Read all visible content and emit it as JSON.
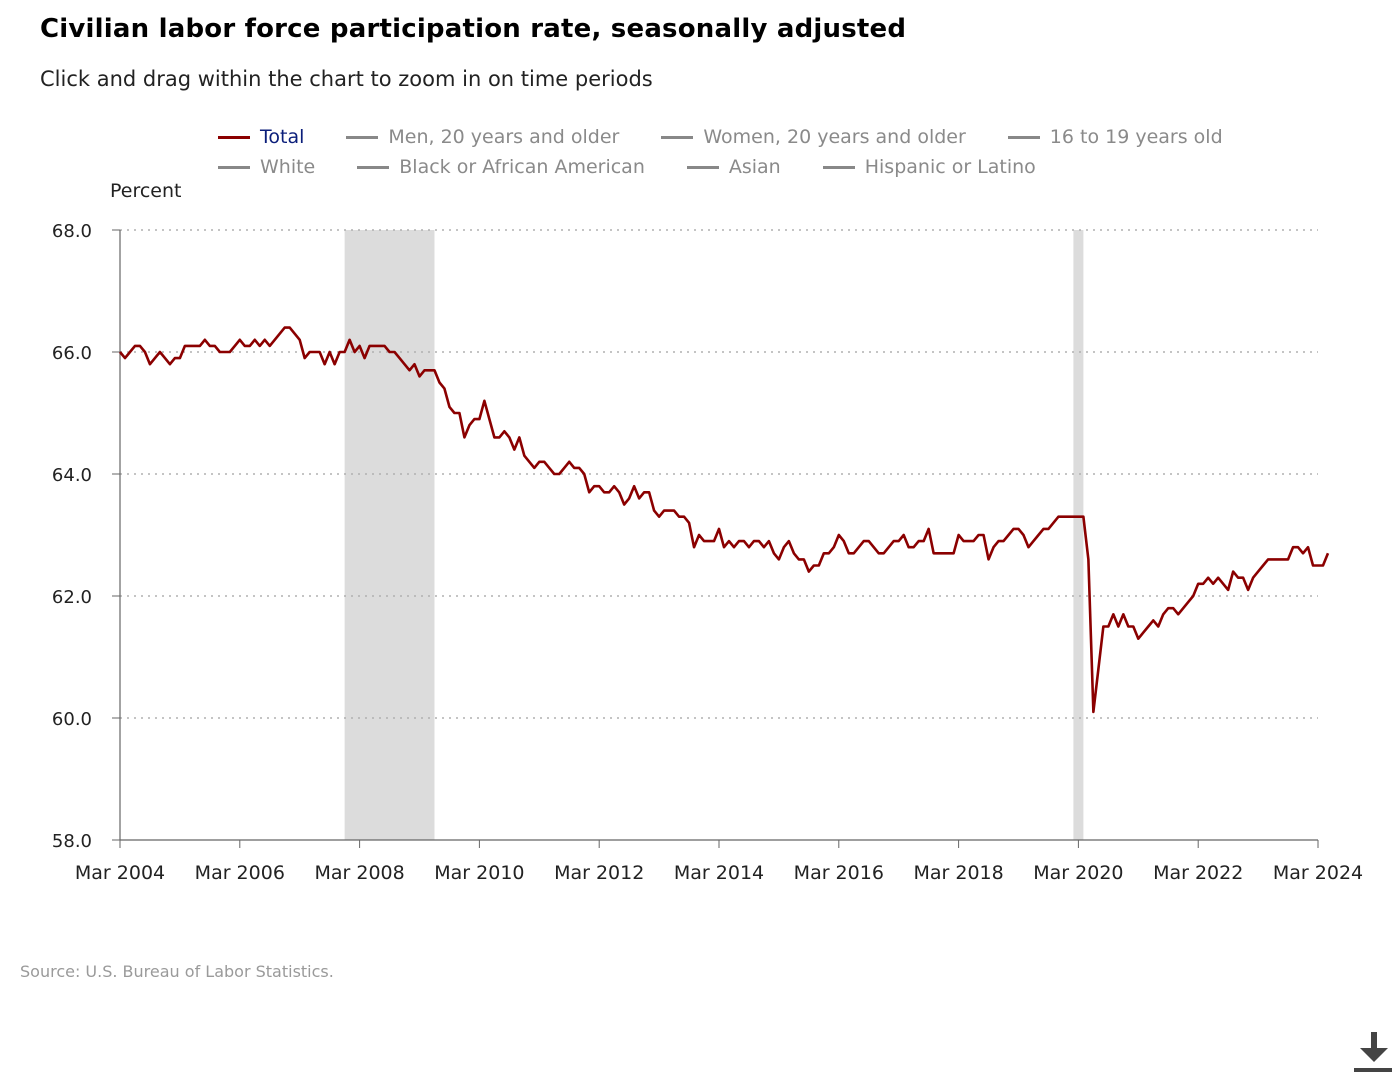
{
  "header": {
    "title": "Civilian labor force participation rate, seasonally adjusted",
    "subtitle": "Click and drag within the chart to zoom in on time periods"
  },
  "legend": {
    "row1": [
      {
        "label": "Total",
        "color": "#8b0000",
        "active": true
      },
      {
        "label": "Men, 20 years and older",
        "color": "#888888",
        "active": false
      },
      {
        "label": "Women, 20 years and older",
        "color": "#888888",
        "active": false
      },
      {
        "label": "16 to 19 years old",
        "color": "#888888",
        "active": false
      }
    ],
    "row2": [
      {
        "label": "White",
        "color": "#888888",
        "active": false
      },
      {
        "label": "Black or African American",
        "color": "#888888",
        "active": false
      },
      {
        "label": "Asian",
        "color": "#888888",
        "active": false
      },
      {
        "label": "Hispanic or Latino",
        "color": "#888888",
        "active": false
      }
    ]
  },
  "footer": {
    "source": "Source: U.S. Bureau of Labor Statistics.",
    "download_icon": "download-icon"
  },
  "chart_data": {
    "type": "line",
    "ylabel": "Percent",
    "ylim": [
      58,
      68
    ],
    "yticks": [
      "68.0",
      "66.0",
      "64.0",
      "62.0",
      "60.0",
      "58.0"
    ],
    "xticks": [
      "Mar 2004",
      "Mar 2006",
      "Mar 2008",
      "Mar 2010",
      "Mar 2012",
      "Mar 2014",
      "Mar 2016",
      "Mar 2018",
      "Mar 2020",
      "Mar 2022",
      "Mar 2024"
    ],
    "x_start": "Mar 2004",
    "x_end": "Mar 2024",
    "grid": "horizontal dotted",
    "recessions": [
      {
        "start": "Dec 2007",
        "end": "Jun 2009"
      },
      {
        "start": "Feb 2020",
        "end": "Apr 2020"
      }
    ],
    "series": [
      {
        "name": "Total",
        "color": "#8b0000",
        "values": [
          66.0,
          65.9,
          66.0,
          66.1,
          66.1,
          66.0,
          65.8,
          65.9,
          66.0,
          65.9,
          65.8,
          65.9,
          65.9,
          66.1,
          66.1,
          66.1,
          66.1,
          66.2,
          66.1,
          66.1,
          66.0,
          66.0,
          66.0,
          66.1,
          66.2,
          66.1,
          66.1,
          66.2,
          66.1,
          66.2,
          66.1,
          66.2,
          66.3,
          66.4,
          66.4,
          66.3,
          66.2,
          65.9,
          66.0,
          66.0,
          66.0,
          65.8,
          66.0,
          65.8,
          66.0,
          66.0,
          66.2,
          66.0,
          66.1,
          65.9,
          66.1,
          66.1,
          66.1,
          66.1,
          66.0,
          66.0,
          65.9,
          65.8,
          65.7,
          65.8,
          65.6,
          65.7,
          65.7,
          65.7,
          65.5,
          65.4,
          65.1,
          65.0,
          65.0,
          64.6,
          64.8,
          64.9,
          64.9,
          65.2,
          64.9,
          64.6,
          64.6,
          64.7,
          64.6,
          64.4,
          64.6,
          64.3,
          64.2,
          64.1,
          64.2,
          64.2,
          64.1,
          64.0,
          64.0,
          64.1,
          64.2,
          64.1,
          64.1,
          64.0,
          63.7,
          63.8,
          63.8,
          63.7,
          63.7,
          63.8,
          63.7,
          63.5,
          63.6,
          63.8,
          63.6,
          63.7,
          63.7,
          63.4,
          63.3,
          63.4,
          63.4,
          63.4,
          63.3,
          63.3,
          63.2,
          62.8,
          63.0,
          62.9,
          62.9,
          62.9,
          63.1,
          62.8,
          62.9,
          62.8,
          62.9,
          62.9,
          62.8,
          62.9,
          62.9,
          62.8,
          62.9,
          62.7,
          62.6,
          62.8,
          62.9,
          62.7,
          62.6,
          62.6,
          62.4,
          62.5,
          62.5,
          62.7,
          62.7,
          62.8,
          63.0,
          62.9,
          62.7,
          62.7,
          62.8,
          62.9,
          62.9,
          62.8,
          62.7,
          62.7,
          62.8,
          62.9,
          62.9,
          63.0,
          62.8,
          62.8,
          62.9,
          62.9,
          63.1,
          62.7,
          62.7,
          62.7,
          62.7,
          62.7,
          63.0,
          62.9,
          62.9,
          62.9,
          63.0,
          63.0,
          62.6,
          62.8,
          62.9,
          62.9,
          63.0,
          63.1,
          63.1,
          63.0,
          62.8,
          62.9,
          63.0,
          63.1,
          63.1,
          63.2,
          63.3,
          63.3,
          63.3,
          63.3,
          63.3,
          63.3,
          62.6,
          60.1,
          60.8,
          61.5,
          61.5,
          61.7,
          61.5,
          61.7,
          61.5,
          61.5,
          61.3,
          61.4,
          61.5,
          61.6,
          61.5,
          61.7,
          61.8,
          61.8,
          61.7,
          61.8,
          61.9,
          62.0,
          62.2,
          62.2,
          62.3,
          62.2,
          62.3,
          62.2,
          62.1,
          62.4,
          62.3,
          62.3,
          62.1,
          62.3,
          62.4,
          62.5,
          62.6,
          62.6,
          62.6,
          62.6,
          62.6,
          62.8,
          62.8,
          62.7,
          62.8,
          62.5,
          62.5,
          62.5,
          62.7
        ]
      }
    ]
  }
}
